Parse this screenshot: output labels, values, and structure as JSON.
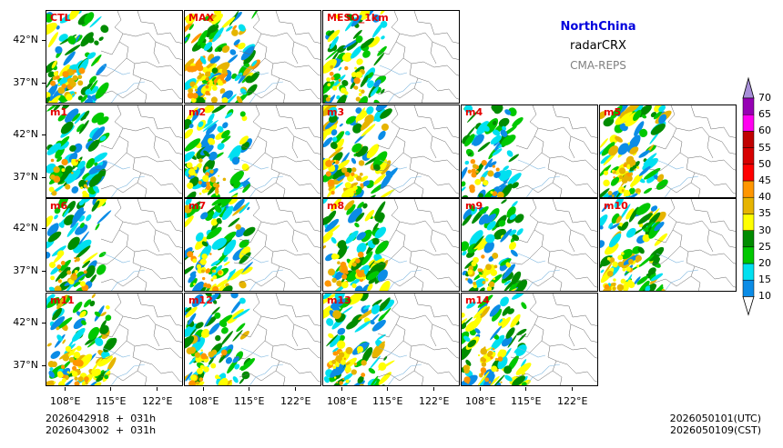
{
  "figure": {
    "region": "NorthChina",
    "variable": "radarCRX",
    "model": "CMA-REPS",
    "init_time_utc": "2026042918  +  031h",
    "init_time_cst": "2026043002  +  031h",
    "valid_time_utc": "2026050101(UTC)",
    "valid_time_cst": "2026050109(CST)"
  },
  "axes": {
    "lat_labels": [
      "42°N",
      "37°N"
    ],
    "lon_labels": [
      "108°E",
      "115°E",
      "122°E"
    ]
  },
  "panels": [
    {
      "label": "CTL",
      "intensity": 0.55,
      "seed": 11
    },
    {
      "label": "MAX",
      "intensity": 0.95,
      "seed": 23
    },
    {
      "label": "MESO_1km",
      "intensity": 0.6,
      "seed": 37
    },
    {
      "label": "m1",
      "intensity": 0.45,
      "seed": 41
    },
    {
      "label": "m2",
      "intensity": 0.6,
      "seed": 53
    },
    {
      "label": "m3",
      "intensity": 0.8,
      "seed": 67
    },
    {
      "label": "m4",
      "intensity": 0.4,
      "seed": 71
    },
    {
      "label": "m5",
      "intensity": 0.75,
      "seed": 83
    },
    {
      "label": "m6",
      "intensity": 0.45,
      "seed": 97
    },
    {
      "label": "m7",
      "intensity": 0.7,
      "seed": 101
    },
    {
      "label": "m8",
      "intensity": 0.65,
      "seed": 113
    },
    {
      "label": "m9",
      "intensity": 0.55,
      "seed": 127
    },
    {
      "label": "m10",
      "intensity": 0.7,
      "seed": 131
    },
    {
      "label": "m11",
      "intensity": 0.75,
      "seed": 149
    },
    {
      "label": "m12",
      "intensity": 0.65,
      "seed": 157
    },
    {
      "label": "m13",
      "intensity": 0.7,
      "seed": 163
    },
    {
      "label": "m14",
      "intensity": 0.65,
      "seed": 173
    }
  ],
  "colorbar": {
    "levels": [
      "10",
      "15",
      "20",
      "25",
      "30",
      "35",
      "40",
      "45",
      "50",
      "55",
      "60",
      "65",
      "70"
    ],
    "colors": [
      "#0b8ce6",
      "#00e0f0",
      "#00c800",
      "#008c00",
      "#ffff00",
      "#e6b400",
      "#ff9600",
      "#ff0000",
      "#d70000",
      "#c00000",
      "#ff00f0",
      "#9600b4",
      "#a78fd8"
    ],
    "extend_colors": {
      "below": "#ffffff",
      "above": "#a78fd8"
    }
  }
}
